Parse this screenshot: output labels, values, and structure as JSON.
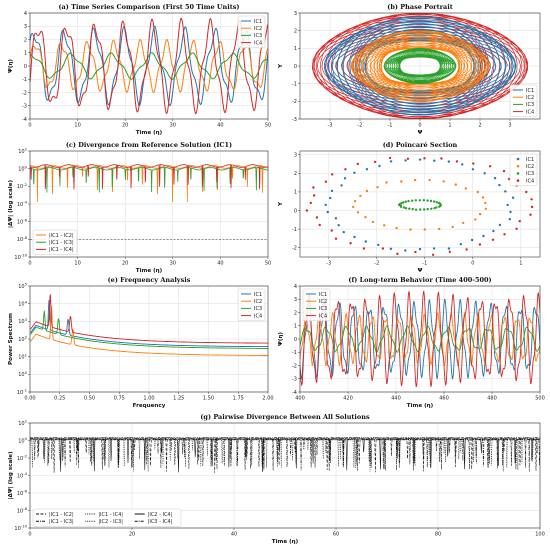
{
  "colors": {
    "IC1": "#1f77b4",
    "IC2": "#ff7f0e",
    "IC3": "#2ca02c",
    "IC4": "#d62728"
  },
  "chart_data": [
    {
      "id": "a",
      "type": "line",
      "title": "(a) Time Series Comparison (First 50 Time Units)",
      "xlabel": "Time (η)",
      "ylabel": "Ψ(η)",
      "xlim": [
        0,
        50
      ],
      "ylim": [
        -4,
        4
      ],
      "xticks": [
        "0",
        "10",
        "20",
        "30",
        "40",
        "50"
      ],
      "yticks": [
        "-4",
        "-3",
        "-2",
        "-1",
        "0",
        "1",
        "2",
        "3",
        "4"
      ],
      "grid": true,
      "legend": "top-right",
      "series": [
        {
          "name": "IC1",
          "amplitude": 3.0,
          "period": 6.3,
          "min": -3.0,
          "max": 3.0
        },
        {
          "name": "IC2",
          "amplitude": 2.0,
          "period": 5.5,
          "min": -2.0,
          "max": 2.0
        },
        {
          "name": "IC3",
          "amplitude": 1.0,
          "period": 8.4,
          "min": -1.0,
          "max": 1.0
        },
        {
          "name": "IC4",
          "amplitude": 3.6,
          "period": 6.0,
          "min": -3.6,
          "max": 3.6
        }
      ]
    },
    {
      "id": "b",
      "type": "line",
      "title": "(b) Phase Portrait",
      "xlabel": "Ψ",
      "ylabel": "Y",
      "xlim": [
        -4,
        4
      ],
      "ylim": [
        -3,
        3
      ],
      "xticks": [
        "-3",
        "-2",
        "-1",
        "0",
        "1",
        "2",
        "3"
      ],
      "yticks": [
        "-3",
        "-2",
        "-1",
        "0",
        "1",
        "2",
        "3"
      ],
      "grid": true,
      "legend": "bottom-right",
      "series": [
        {
          "name": "IC1",
          "x_range": [
            -3.2,
            3.2
          ],
          "y_range": [
            -2.8,
            2.8
          ]
        },
        {
          "name": "IC2",
          "x_range": [
            -2.3,
            2.3
          ],
          "y_range": [
            -2.0,
            2.0
          ]
        },
        {
          "name": "IC3",
          "x_range": [
            -1.2,
            1.2
          ],
          "y_range": [
            -1.0,
            1.0
          ]
        },
        {
          "name": "IC4",
          "x_range": [
            -3.6,
            3.6
          ],
          "y_range": [
            -3.0,
            3.0
          ]
        }
      ]
    },
    {
      "id": "c",
      "type": "line",
      "title": "(c) Divergence from Reference Solution (IC1)",
      "xlabel": "Time (η)",
      "ylabel": "|ΔΨ| (log scale)",
      "xscale": "linear",
      "yscale": "log",
      "xlim": [
        0,
        50
      ],
      "ylim_exp": [
        -10,
        2
      ],
      "xticks": [
        "0",
        "10",
        "20",
        "30",
        "40",
        "50"
      ],
      "yticks": [
        "10^-10",
        "10^-8",
        "10^-6",
        "10^-4",
        "10^-2",
        "10^0",
        "10^2"
      ],
      "grid": true,
      "legend": "bottom-left",
      "threshold_exp": -8,
      "series": [
        {
          "name": "|IC1 - IC2|",
          "typical_exp": 0.2,
          "deepest_dip_exp": -4.8
        },
        {
          "name": "|IC1 - IC3|",
          "typical_exp": 0.0,
          "deepest_dip_exp": -3.5
        },
        {
          "name": "|IC1 - IC4|",
          "typical_exp": 0.3,
          "deepest_dip_exp": -2.8
        }
      ]
    },
    {
      "id": "d",
      "type": "scatter",
      "title": "(d) Poincaré Section",
      "xlabel": "Ψ",
      "ylabel": "Y",
      "xlim": [
        -3.6,
        1.4
      ],
      "ylim": [
        -2.5,
        3.2
      ],
      "xticks": [
        "-3",
        "-2",
        "-1",
        "0",
        "1"
      ],
      "yticks": [
        "-2",
        "-1",
        "0",
        "1",
        "2",
        "3"
      ],
      "grid": true,
      "legend": "top-right",
      "series": [
        {
          "name": "IC1",
          "center": [
            -1.1,
            0.3
          ],
          "radius_x": 1.9,
          "radius_y": 2.4,
          "points": 40
        },
        {
          "name": "IC2",
          "center": [
            -1.1,
            0.3
          ],
          "radius_x": 1.35,
          "radius_y": 1.35,
          "points": 28
        },
        {
          "name": "IC3",
          "center": [
            -1.1,
            0.3
          ],
          "radius_x": 0.42,
          "radius_y": 0.25,
          "points": 32
        },
        {
          "name": "IC4",
          "center": [
            -1.1,
            0.3
          ],
          "radius_x": 2.3,
          "radius_y": 2.6,
          "points": 40
        }
      ]
    },
    {
      "id": "e",
      "type": "line",
      "title": "(e) Frequency Analysis",
      "xlabel": "Frequency",
      "ylabel": "Power Spectrum",
      "yscale": "log",
      "xlim": [
        0,
        2.0
      ],
      "ylim_exp": [
        -1,
        5
      ],
      "xticks": [
        "0.00",
        "0.25",
        "0.50",
        "0.75",
        "1.00",
        "1.25",
        "1.50",
        "1.75",
        "2.00"
      ],
      "yticks": [
        "10^-1",
        "10^0",
        "10^1",
        "10^2",
        "10^3",
        "10^4",
        "10^5"
      ],
      "grid": true,
      "legend": "top-right",
      "series": [
        {
          "name": "IC1",
          "peak_freq": 0.16,
          "peak_exp": 4.2,
          "tail_exp": 1.55
        },
        {
          "name": "IC2",
          "peak_freq": 0.18,
          "peak_exp": 3.9,
          "tail_exp": 1.05
        },
        {
          "name": "IC3",
          "peak_freq": 0.12,
          "peak_exp": 3.6,
          "tail_exp": 1.45
        },
        {
          "name": "IC4",
          "peak_freq": 0.17,
          "peak_exp": 4.6,
          "tail_exp": 1.75
        }
      ]
    },
    {
      "id": "f",
      "type": "line",
      "title": "(f) Long-term Behavior (Time 400-500)",
      "xlabel": "Time (η)",
      "ylabel": "Ψ(η)",
      "xlim": [
        400,
        500
      ],
      "ylim": [
        -4,
        4
      ],
      "xticks": [
        "400",
        "420",
        "440",
        "460",
        "480",
        "500"
      ],
      "yticks": [
        "-4",
        "-3",
        "-2",
        "-1",
        "0",
        "1",
        "2",
        "3",
        "4"
      ],
      "grid": true,
      "legend": "top-left",
      "series": [
        {
          "name": "IC1",
          "amplitude": 3.0,
          "period": 6.3
        },
        {
          "name": "IC2",
          "amplitude": 2.0,
          "period": 5.5
        },
        {
          "name": "IC3",
          "amplitude": 1.0,
          "period": 8.4
        },
        {
          "name": "IC4",
          "amplitude": 3.6,
          "period": 6.0
        }
      ]
    },
    {
      "id": "g",
      "type": "line",
      "title": "(g) Pairwise Divergence Between All Solutions",
      "xlabel": "Time (η)",
      "ylabel": "|ΔΨ| (log scale)",
      "yscale": "log",
      "xlim": [
        0,
        100
      ],
      "ylim_exp": [
        -10,
        2
      ],
      "xticks": [
        "0",
        "20",
        "40",
        "60",
        "80",
        "100"
      ],
      "yticks": [
        "10^-10",
        "10^-8",
        "10^-6",
        "10^-4",
        "10^-2",
        "10^0",
        "10^2"
      ],
      "grid": true,
      "legend": "bottom-left",
      "series": [
        {
          "name": "|IC1 - IC2|",
          "dash": "dashed"
        },
        {
          "name": "|IC1 - IC3|",
          "dash": "dashdot"
        },
        {
          "name": "|IC1 - IC4|",
          "dash": "dotted"
        },
        {
          "name": "|IC2 - IC3|",
          "dash": "dotted"
        },
        {
          "name": "|IC2 - IC4|",
          "dash": "solid"
        },
        {
          "name": "|IC3 - IC4|",
          "dash": "dashdot"
        }
      ]
    }
  ]
}
